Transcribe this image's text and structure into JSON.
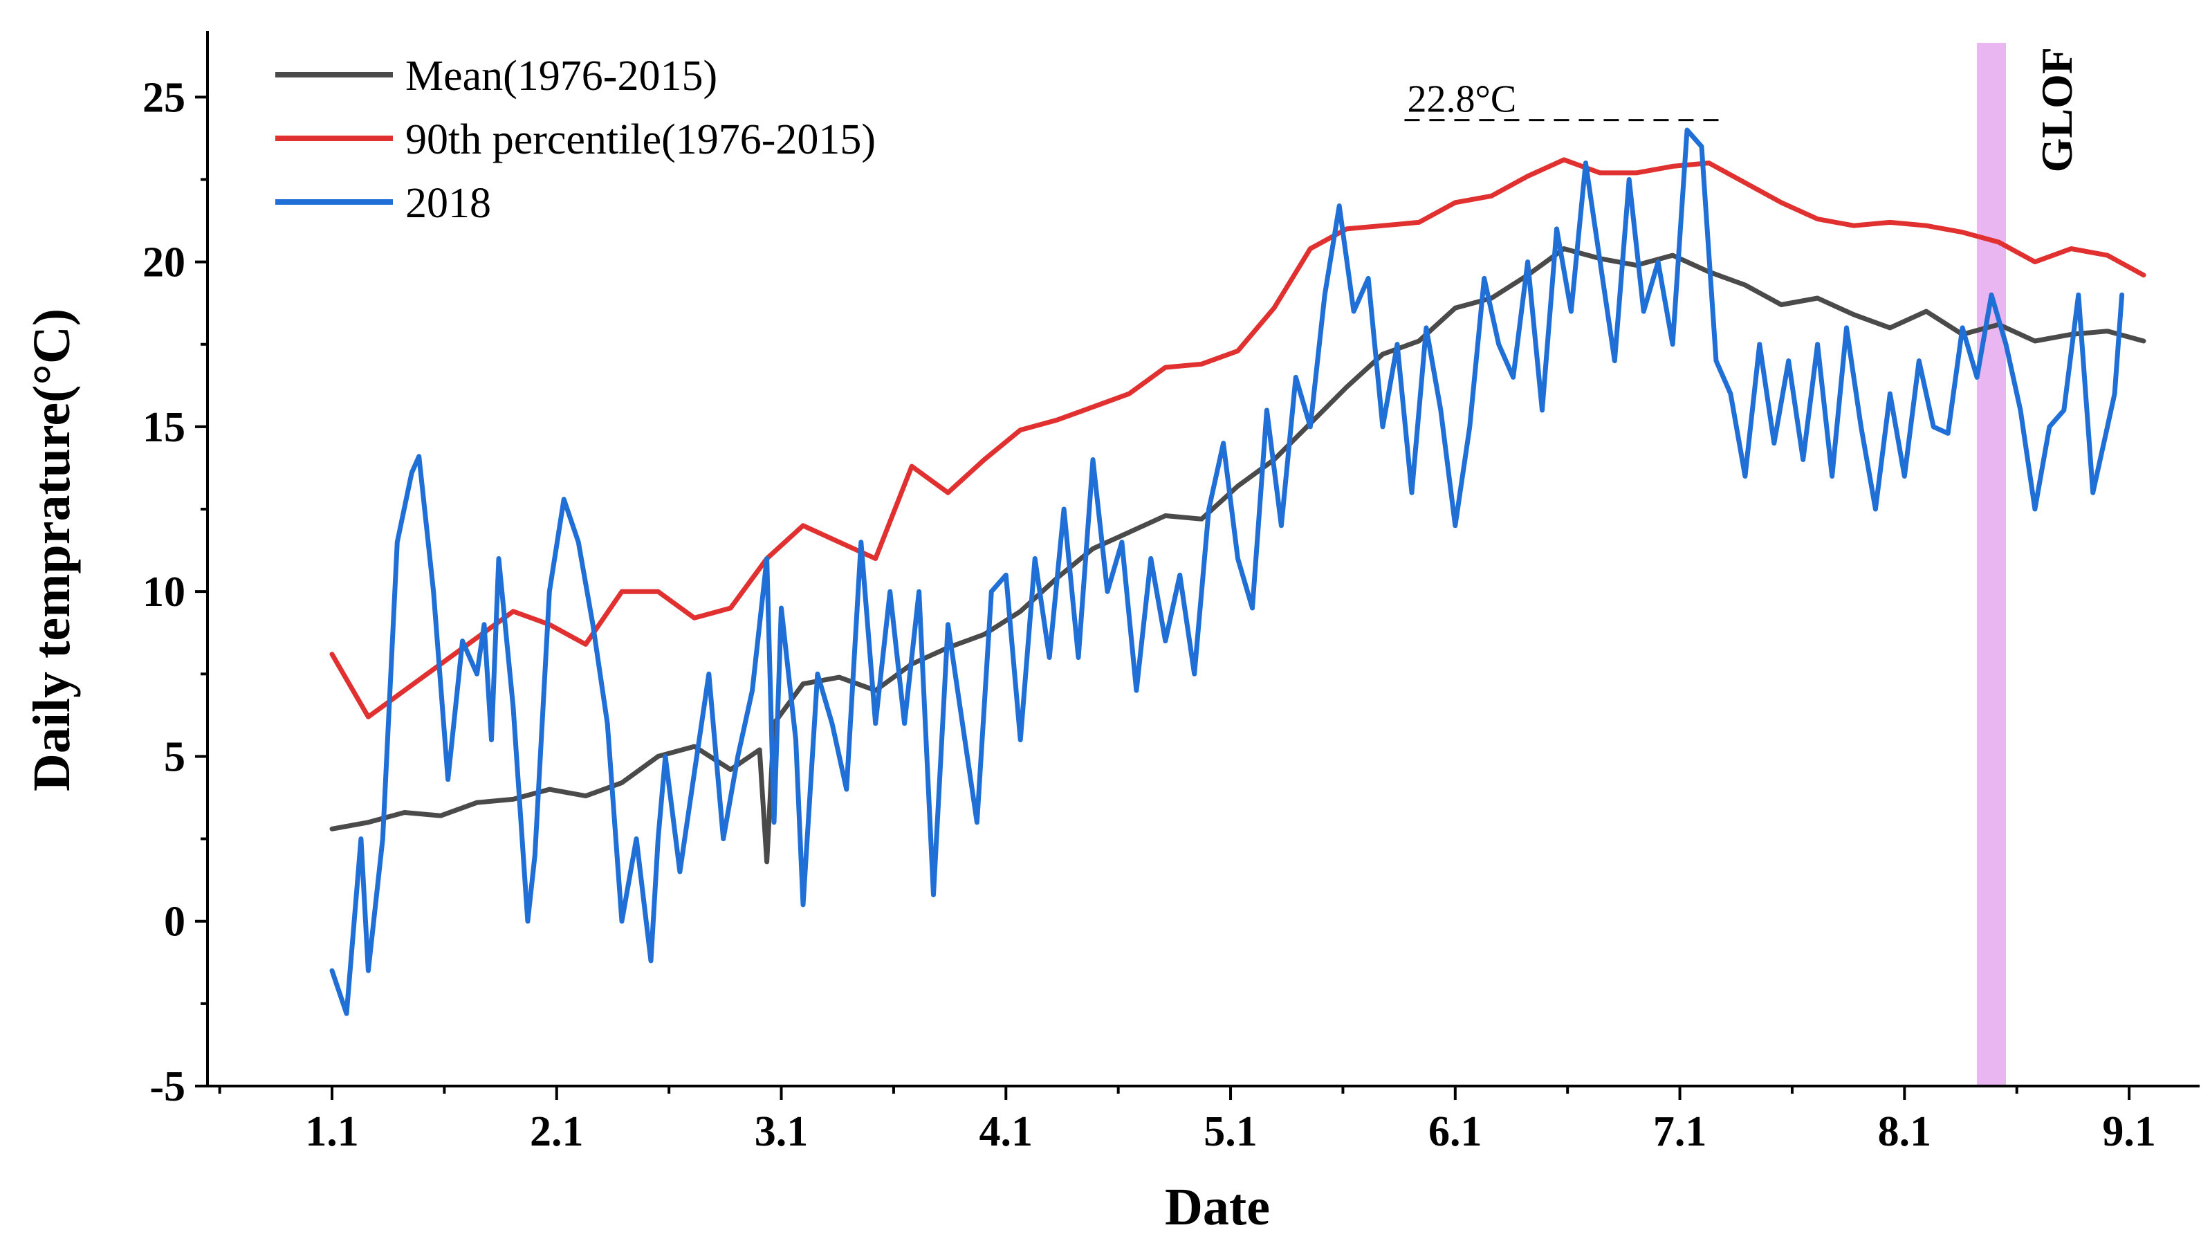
{
  "chart_data": {
    "type": "line",
    "title": "",
    "xlabel": "Date",
    "ylabel": "Daily temprature(°C)",
    "ylim": [
      -5,
      27
    ],
    "yticks": [
      -5,
      0,
      5,
      10,
      15,
      20,
      25
    ],
    "x_day_range": [
      0,
      252
    ],
    "xticks": [
      {
        "label": "1.1",
        "day": 0
      },
      {
        "label": "2.1",
        "day": 31
      },
      {
        "label": "3.1",
        "day": 62
      },
      {
        "label": "4.1",
        "day": 93
      },
      {
        "label": "5.1",
        "day": 124
      },
      {
        "label": "6.1",
        "day": 155
      },
      {
        "label": "7.1",
        "day": 186
      },
      {
        "label": "8.1",
        "day": 217
      },
      {
        "label": "9.1",
        "day": 248
      }
    ],
    "series": [
      {
        "name": "Mean(1976-2015)",
        "color": "#4a4a4a",
        "points": [
          [
            0,
            2.8
          ],
          [
            5,
            3.0
          ],
          [
            10,
            3.3
          ],
          [
            15,
            3.2
          ],
          [
            20,
            3.6
          ],
          [
            25,
            3.7
          ],
          [
            30,
            4.0
          ],
          [
            35,
            3.8
          ],
          [
            40,
            4.2
          ],
          [
            45,
            5.0
          ],
          [
            50,
            5.3
          ],
          [
            55,
            4.6
          ],
          [
            59,
            5.2
          ],
          [
            60,
            1.8
          ],
          [
            61,
            6.0
          ],
          [
            65,
            7.2
          ],
          [
            70,
            7.4
          ],
          [
            75,
            7.0
          ],
          [
            80,
            7.8
          ],
          [
            85,
            8.3
          ],
          [
            90,
            8.7
          ],
          [
            95,
            9.4
          ],
          [
            100,
            10.4
          ],
          [
            105,
            11.3
          ],
          [
            110,
            11.8
          ],
          [
            115,
            12.3
          ],
          [
            120,
            12.2
          ],
          [
            125,
            13.2
          ],
          [
            130,
            14.0
          ],
          [
            135,
            15.1
          ],
          [
            140,
            16.2
          ],
          [
            145,
            17.2
          ],
          [
            150,
            17.6
          ],
          [
            155,
            18.6
          ],
          [
            160,
            18.9
          ],
          [
            165,
            19.6
          ],
          [
            170,
            20.4
          ],
          [
            175,
            20.1
          ],
          [
            180,
            19.9
          ],
          [
            185,
            20.2
          ],
          [
            190,
            19.7
          ],
          [
            195,
            19.3
          ],
          [
            200,
            18.7
          ],
          [
            205,
            18.9
          ],
          [
            210,
            18.4
          ],
          [
            215,
            18.0
          ],
          [
            220,
            18.5
          ],
          [
            225,
            17.8
          ],
          [
            230,
            18.1
          ],
          [
            235,
            17.6
          ],
          [
            240,
            17.8
          ],
          [
            245,
            17.9
          ],
          [
            250,
            17.6
          ]
        ]
      },
      {
        "name": "90th percentile(1976-2015)",
        "color": "#e03030",
        "points": [
          [
            0,
            8.1
          ],
          [
            5,
            6.2
          ],
          [
            10,
            7.0
          ],
          [
            15,
            7.8
          ],
          [
            20,
            8.6
          ],
          [
            25,
            9.4
          ],
          [
            30,
            9.0
          ],
          [
            35,
            8.4
          ],
          [
            40,
            10.0
          ],
          [
            45,
            10.0
          ],
          [
            50,
            9.2
          ],
          [
            55,
            9.5
          ],
          [
            60,
            11.0
          ],
          [
            65,
            12.0
          ],
          [
            70,
            11.5
          ],
          [
            75,
            11.0
          ],
          [
            80,
            13.8
          ],
          [
            85,
            13.0
          ],
          [
            90,
            14.0
          ],
          [
            95,
            14.9
          ],
          [
            100,
            15.2
          ],
          [
            105,
            15.6
          ],
          [
            110,
            16.0
          ],
          [
            115,
            16.8
          ],
          [
            120,
            16.9
          ],
          [
            125,
            17.3
          ],
          [
            130,
            18.6
          ],
          [
            135,
            20.4
          ],
          [
            140,
            21.0
          ],
          [
            145,
            21.1
          ],
          [
            150,
            21.2
          ],
          [
            155,
            21.8
          ],
          [
            160,
            22.0
          ],
          [
            165,
            22.6
          ],
          [
            170,
            23.1
          ],
          [
            175,
            22.7
          ],
          [
            180,
            22.7
          ],
          [
            185,
            22.9
          ],
          [
            190,
            23.0
          ],
          [
            195,
            22.4
          ],
          [
            200,
            21.8
          ],
          [
            205,
            21.3
          ],
          [
            210,
            21.1
          ],
          [
            215,
            21.2
          ],
          [
            220,
            21.1
          ],
          [
            225,
            20.9
          ],
          [
            230,
            20.6
          ],
          [
            235,
            20.0
          ],
          [
            240,
            20.4
          ],
          [
            245,
            20.2
          ],
          [
            250,
            19.6
          ]
        ]
      },
      {
        "name": "2018",
        "color": "#1f6fd6",
        "points": [
          [
            0,
            -1.5
          ],
          [
            2,
            -2.8
          ],
          [
            4,
            2.5
          ],
          [
            5,
            -1.5
          ],
          [
            7,
            2.5
          ],
          [
            9,
            11.5
          ],
          [
            11,
            13.6
          ],
          [
            12,
            14.1
          ],
          [
            14,
            10.0
          ],
          [
            16,
            4.3
          ],
          [
            18,
            8.5
          ],
          [
            20,
            7.5
          ],
          [
            21,
            9.0
          ],
          [
            22,
            5.5
          ],
          [
            23,
            11.0
          ],
          [
            25,
            6.5
          ],
          [
            27,
            0.0
          ],
          [
            28,
            2.0
          ],
          [
            30,
            10.0
          ],
          [
            32,
            12.8
          ],
          [
            34,
            11.5
          ],
          [
            36,
            9.0
          ],
          [
            38,
            6.0
          ],
          [
            40,
            0.0
          ],
          [
            42,
            2.5
          ],
          [
            44,
            -1.2
          ],
          [
            45,
            2.5
          ],
          [
            46,
            5.0
          ],
          [
            48,
            1.5
          ],
          [
            50,
            4.5
          ],
          [
            52,
            7.5
          ],
          [
            54,
            2.5
          ],
          [
            56,
            5.0
          ],
          [
            58,
            7.0
          ],
          [
            60,
            11.0
          ],
          [
            61,
            3.0
          ],
          [
            62,
            9.5
          ],
          [
            64,
            5.5
          ],
          [
            65,
            0.5
          ],
          [
            67,
            7.5
          ],
          [
            69,
            6.0
          ],
          [
            71,
            4.0
          ],
          [
            73,
            11.5
          ],
          [
            75,
            6.0
          ],
          [
            77,
            10.0
          ],
          [
            79,
            6.0
          ],
          [
            81,
            10.0
          ],
          [
            83,
            0.8
          ],
          [
            85,
            9.0
          ],
          [
            87,
            6.0
          ],
          [
            89,
            3.0
          ],
          [
            91,
            10.0
          ],
          [
            93,
            10.5
          ],
          [
            95,
            5.5
          ],
          [
            97,
            11.0
          ],
          [
            99,
            8.0
          ],
          [
            101,
            12.5
          ],
          [
            103,
            8.0
          ],
          [
            105,
            14.0
          ],
          [
            107,
            10.0
          ],
          [
            109,
            11.5
          ],
          [
            111,
            7.0
          ],
          [
            113,
            11.0
          ],
          [
            115,
            8.5
          ],
          [
            117,
            10.5
          ],
          [
            119,
            7.5
          ],
          [
            121,
            12.5
          ],
          [
            123,
            14.5
          ],
          [
            125,
            11.0
          ],
          [
            127,
            9.5
          ],
          [
            129,
            15.5
          ],
          [
            131,
            12.0
          ],
          [
            133,
            16.5
          ],
          [
            135,
            15.0
          ],
          [
            137,
            19.0
          ],
          [
            139,
            21.7
          ],
          [
            141,
            18.5
          ],
          [
            143,
            19.5
          ],
          [
            145,
            15.0
          ],
          [
            147,
            17.5
          ],
          [
            149,
            13.0
          ],
          [
            151,
            18.0
          ],
          [
            153,
            15.5
          ],
          [
            155,
            12.0
          ],
          [
            157,
            15.0
          ],
          [
            159,
            19.5
          ],
          [
            161,
            17.5
          ],
          [
            163,
            16.5
          ],
          [
            165,
            20.0
          ],
          [
            167,
            15.5
          ],
          [
            169,
            21.0
          ],
          [
            171,
            18.5
          ],
          [
            173,
            23.0
          ],
          [
            175,
            20.0
          ],
          [
            177,
            17.0
          ],
          [
            179,
            22.5
          ],
          [
            181,
            18.5
          ],
          [
            183,
            20.0
          ],
          [
            185,
            17.5
          ],
          [
            187,
            24.0
          ],
          [
            189,
            23.5
          ],
          [
            191,
            17.0
          ],
          [
            193,
            16.0
          ],
          [
            195,
            13.5
          ],
          [
            197,
            17.5
          ],
          [
            199,
            14.5
          ],
          [
            201,
            17.0
          ],
          [
            203,
            14.0
          ],
          [
            205,
            17.5
          ],
          [
            207,
            13.5
          ],
          [
            209,
            18.0
          ],
          [
            211,
            15.0
          ],
          [
            213,
            12.5
          ],
          [
            215,
            16.0
          ],
          [
            217,
            13.5
          ],
          [
            219,
            17.0
          ],
          [
            221,
            15.0
          ],
          [
            223,
            14.8
          ],
          [
            225,
            18.0
          ],
          [
            227,
            16.5
          ],
          [
            229,
            19.0
          ],
          [
            231,
            17.5
          ],
          [
            233,
            15.5
          ],
          [
            235,
            12.5
          ],
          [
            237,
            15.0
          ],
          [
            239,
            15.5
          ],
          [
            241,
            19.0
          ],
          [
            243,
            13.0
          ],
          [
            245,
            15.0
          ],
          [
            246,
            16.0
          ],
          [
            247,
            19.0
          ]
        ]
      }
    ],
    "annotations": [
      {
        "text": "22.8°C",
        "from_day": 148,
        "to_day": 192,
        "y": 24.3
      }
    ],
    "highlight": {
      "label": "GLOF",
      "from_day": 227,
      "to_day": 231,
      "color": "#e9b6f2"
    },
    "legend": {
      "position": "top-left"
    },
    "grid": false
  }
}
